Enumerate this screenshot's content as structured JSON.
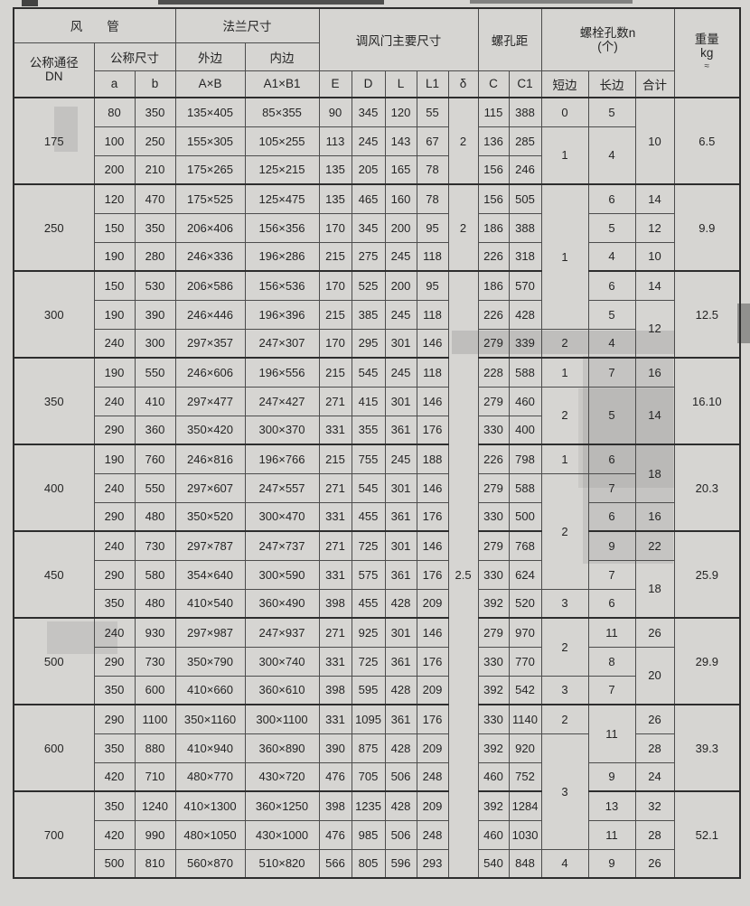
{
  "table": {
    "header": {
      "duct_group": "风　　管",
      "flange_group": "法兰尺寸",
      "damper_group": "调风门主要尺寸",
      "pitch_group": "螺孔距",
      "bolt_group_line1": "螺栓孔数n",
      "bolt_group_line2": "(个)",
      "weight_line1": "重量",
      "weight_line2": "kg",
      "weight_line3": "≈",
      "dn_line1": "公称通径",
      "dn_line2": "DN",
      "nominal_size": "公称尺寸",
      "outer_edge": "外边",
      "inner_edge": "内边",
      "sub": [
        "a",
        "b",
        "A×B",
        "A1×B1",
        "E",
        "D",
        "L",
        "L1",
        "δ",
        "C",
        "C1",
        "短边",
        "长边",
        "合计"
      ]
    },
    "body": [
      [
        {
          "v": "175",
          "rs": 3
        },
        {
          "v": "80"
        },
        {
          "v": "350"
        },
        {
          "v": "135×405"
        },
        {
          "v": "85×355"
        },
        {
          "v": "90"
        },
        {
          "v": "345"
        },
        {
          "v": "120"
        },
        {
          "v": "55"
        },
        {
          "v": "2",
          "rs": 3
        },
        {
          "v": "115"
        },
        {
          "v": "388"
        },
        {
          "v": "0"
        },
        {
          "v": "5"
        },
        {
          "v": "10",
          "rs": 3
        },
        {
          "v": "6.5",
          "rs": 3
        }
      ],
      [
        {
          "v": "100"
        },
        {
          "v": "250"
        },
        {
          "v": "155×305"
        },
        {
          "v": "105×255"
        },
        {
          "v": "113"
        },
        {
          "v": "245"
        },
        {
          "v": "143"
        },
        {
          "v": "67"
        },
        {
          "v": "136"
        },
        {
          "v": "285"
        },
        {
          "v": "1",
          "rs": 2
        },
        {
          "v": "4",
          "rs": 2
        }
      ],
      [
        {
          "v": "200"
        },
        {
          "v": "210"
        },
        {
          "v": "175×265"
        },
        {
          "v": "125×215"
        },
        {
          "v": "135"
        },
        {
          "v": "205"
        },
        {
          "v": "165"
        },
        {
          "v": "78"
        },
        {
          "v": "156"
        },
        {
          "v": "246"
        }
      ],
      [
        {
          "v": "250",
          "rs": 3
        },
        {
          "v": "120"
        },
        {
          "v": "470"
        },
        {
          "v": "175×525"
        },
        {
          "v": "125×475"
        },
        {
          "v": "135"
        },
        {
          "v": "465"
        },
        {
          "v": "160"
        },
        {
          "v": "78"
        },
        {
          "v": "2",
          "rs": 3
        },
        {
          "v": "156"
        },
        {
          "v": "505"
        },
        {
          "v": "1",
          "rs": 5
        },
        {
          "v": "6"
        },
        {
          "v": "14"
        },
        {
          "v": "9.9",
          "rs": 3
        }
      ],
      [
        {
          "v": "150"
        },
        {
          "v": "350"
        },
        {
          "v": "206×406"
        },
        {
          "v": "156×356"
        },
        {
          "v": "170"
        },
        {
          "v": "345"
        },
        {
          "v": "200"
        },
        {
          "v": "95"
        },
        {
          "v": "186"
        },
        {
          "v": "388"
        },
        {
          "v": "5"
        },
        {
          "v": "12"
        }
      ],
      [
        {
          "v": "190"
        },
        {
          "v": "280"
        },
        {
          "v": "246×336"
        },
        {
          "v": "196×286"
        },
        {
          "v": "215"
        },
        {
          "v": "275"
        },
        {
          "v": "245"
        },
        {
          "v": "118"
        },
        {
          "v": "226"
        },
        {
          "v": "318"
        },
        {
          "v": "4"
        },
        {
          "v": "10"
        }
      ],
      [
        {
          "v": "300",
          "rs": 3
        },
        {
          "v": "150"
        },
        {
          "v": "530"
        },
        {
          "v": "206×586"
        },
        {
          "v": "156×536"
        },
        {
          "v": "170"
        },
        {
          "v": "525"
        },
        {
          "v": "200"
        },
        {
          "v": "95"
        },
        {
          "v": "2.5",
          "rs": 21
        },
        {
          "v": "186"
        },
        {
          "v": "570"
        },
        {
          "v": "6"
        },
        {
          "v": "14"
        },
        {
          "v": "12.5",
          "rs": 3
        }
      ],
      [
        {
          "v": "190"
        },
        {
          "v": "390"
        },
        {
          "v": "246×446"
        },
        {
          "v": "196×396"
        },
        {
          "v": "215"
        },
        {
          "v": "385"
        },
        {
          "v": "245"
        },
        {
          "v": "118"
        },
        {
          "v": "226"
        },
        {
          "v": "428"
        },
        {
          "v": "5"
        },
        {
          "v": "12",
          "rs": 2
        }
      ],
      [
        {
          "v": "240"
        },
        {
          "v": "300"
        },
        {
          "v": "297×357"
        },
        {
          "v": "247×307"
        },
        {
          "v": "170"
        },
        {
          "v": "295"
        },
        {
          "v": "301"
        },
        {
          "v": "146"
        },
        {
          "v": "279"
        },
        {
          "v": "339"
        },
        {
          "v": "2"
        },
        {
          "v": "4"
        }
      ],
      [
        {
          "v": "350",
          "rs": 3
        },
        {
          "v": "190"
        },
        {
          "v": "550"
        },
        {
          "v": "246×606"
        },
        {
          "v": "196×556"
        },
        {
          "v": "215"
        },
        {
          "v": "545"
        },
        {
          "v": "245"
        },
        {
          "v": "118"
        },
        {
          "v": "228"
        },
        {
          "v": "588"
        },
        {
          "v": "1"
        },
        {
          "v": "7"
        },
        {
          "v": "16"
        },
        {
          "v": "16.10",
          "rs": 3
        }
      ],
      [
        {
          "v": "240"
        },
        {
          "v": "410"
        },
        {
          "v": "297×477"
        },
        {
          "v": "247×427"
        },
        {
          "v": "271"
        },
        {
          "v": "415"
        },
        {
          "v": "301"
        },
        {
          "v": "146"
        },
        {
          "v": "279"
        },
        {
          "v": "460"
        },
        {
          "v": "2",
          "rs": 2
        },
        {
          "v": "5",
          "rs": 2
        },
        {
          "v": "14",
          "rs": 2
        }
      ],
      [
        {
          "v": "290"
        },
        {
          "v": "360"
        },
        {
          "v": "350×420"
        },
        {
          "v": "300×370"
        },
        {
          "v": "331"
        },
        {
          "v": "355"
        },
        {
          "v": "361"
        },
        {
          "v": "176"
        },
        {
          "v": "330"
        },
        {
          "v": "400"
        }
      ],
      [
        {
          "v": "400",
          "rs": 3
        },
        {
          "v": "190"
        },
        {
          "v": "760"
        },
        {
          "v": "246×816"
        },
        {
          "v": "196×766"
        },
        {
          "v": "215"
        },
        {
          "v": "755"
        },
        {
          "v": "245"
        },
        {
          "v": "188"
        },
        {
          "v": "226"
        },
        {
          "v": "798"
        },
        {
          "v": "1"
        },
        {
          "v": "6"
        },
        {
          "v": "18",
          "rs": 2
        },
        {
          "v": "20.3",
          "rs": 3
        }
      ],
      [
        {
          "v": "240"
        },
        {
          "v": "550"
        },
        {
          "v": "297×607"
        },
        {
          "v": "247×557"
        },
        {
          "v": "271"
        },
        {
          "v": "545"
        },
        {
          "v": "301"
        },
        {
          "v": "146"
        },
        {
          "v": "279"
        },
        {
          "v": "588"
        },
        {
          "v": "2",
          "rs": 4
        },
        {
          "v": "7"
        }
      ],
      [
        {
          "v": "290"
        },
        {
          "v": "480"
        },
        {
          "v": "350×520"
        },
        {
          "v": "300×470"
        },
        {
          "v": "331"
        },
        {
          "v": "455"
        },
        {
          "v": "361"
        },
        {
          "v": "176"
        },
        {
          "v": "330"
        },
        {
          "v": "500"
        },
        {
          "v": "6"
        },
        {
          "v": "16"
        }
      ],
      [
        {
          "v": "450",
          "rs": 3
        },
        {
          "v": "240"
        },
        {
          "v": "730"
        },
        {
          "v": "297×787"
        },
        {
          "v": "247×737"
        },
        {
          "v": "271"
        },
        {
          "v": "725"
        },
        {
          "v": "301"
        },
        {
          "v": "146"
        },
        {
          "v": "279"
        },
        {
          "v": "768"
        },
        {
          "v": "9"
        },
        {
          "v": "22"
        },
        {
          "v": "25.9",
          "rs": 3
        }
      ],
      [
        {
          "v": "290"
        },
        {
          "v": "580"
        },
        {
          "v": "354×640"
        },
        {
          "v": "300×590"
        },
        {
          "v": "331"
        },
        {
          "v": "575"
        },
        {
          "v": "361"
        },
        {
          "v": "176"
        },
        {
          "v": "330"
        },
        {
          "v": "624"
        },
        {
          "v": "7"
        },
        {
          "v": "18",
          "rs": 2
        }
      ],
      [
        {
          "v": "350"
        },
        {
          "v": "480"
        },
        {
          "v": "410×540"
        },
        {
          "v": "360×490"
        },
        {
          "v": "398"
        },
        {
          "v": "455"
        },
        {
          "v": "428"
        },
        {
          "v": "209"
        },
        {
          "v": "392"
        },
        {
          "v": "520"
        },
        {
          "v": "3"
        },
        {
          "v": "6"
        }
      ],
      [
        {
          "v": "500",
          "rs": 3
        },
        {
          "v": "240"
        },
        {
          "v": "930"
        },
        {
          "v": "297×987"
        },
        {
          "v": "247×937"
        },
        {
          "v": "271"
        },
        {
          "v": "925"
        },
        {
          "v": "301"
        },
        {
          "v": "146"
        },
        {
          "v": "279"
        },
        {
          "v": "970"
        },
        {
          "v": "2",
          "rs": 2
        },
        {
          "v": "11"
        },
        {
          "v": "26"
        },
        {
          "v": "29.9",
          "rs": 3
        }
      ],
      [
        {
          "v": "290"
        },
        {
          "v": "730"
        },
        {
          "v": "350×790"
        },
        {
          "v": "300×740"
        },
        {
          "v": "331"
        },
        {
          "v": "725"
        },
        {
          "v": "361"
        },
        {
          "v": "176"
        },
        {
          "v": "330"
        },
        {
          "v": "770"
        },
        {
          "v": "8"
        },
        {
          "v": "20",
          "rs": 2
        }
      ],
      [
        {
          "v": "350"
        },
        {
          "v": "600"
        },
        {
          "v": "410×660"
        },
        {
          "v": "360×610"
        },
        {
          "v": "398"
        },
        {
          "v": "595"
        },
        {
          "v": "428"
        },
        {
          "v": "209"
        },
        {
          "v": "392"
        },
        {
          "v": "542"
        },
        {
          "v": "3"
        },
        {
          "v": "7"
        }
      ],
      [
        {
          "v": "600",
          "rs": 3
        },
        {
          "v": "290"
        },
        {
          "v": "1100"
        },
        {
          "v": "350×1160"
        },
        {
          "v": "300×1100"
        },
        {
          "v": "331"
        },
        {
          "v": "1095"
        },
        {
          "v": "361"
        },
        {
          "v": "176"
        },
        {
          "v": "330"
        },
        {
          "v": "1140"
        },
        {
          "v": "2"
        },
        {
          "v": "11",
          "rs": 2
        },
        {
          "v": "26"
        },
        {
          "v": "39.3",
          "rs": 3
        }
      ],
      [
        {
          "v": "350"
        },
        {
          "v": "880"
        },
        {
          "v": "410×940"
        },
        {
          "v": "360×890"
        },
        {
          "v": "390"
        },
        {
          "v": "875"
        },
        {
          "v": "428"
        },
        {
          "v": "209"
        },
        {
          "v": "392"
        },
        {
          "v": "920"
        },
        {
          "v": "3",
          "rs": 4
        },
        {
          "v": "28"
        }
      ],
      [
        {
          "v": "420"
        },
        {
          "v": "710"
        },
        {
          "v": "480×770"
        },
        {
          "v": "430×720"
        },
        {
          "v": "476"
        },
        {
          "v": "705"
        },
        {
          "v": "506"
        },
        {
          "v": "248"
        },
        {
          "v": "460"
        },
        {
          "v": "752"
        },
        {
          "v": "9"
        },
        {
          "v": "24"
        }
      ],
      [
        {
          "v": "700",
          "rs": 3
        },
        {
          "v": "350"
        },
        {
          "v": "1240"
        },
        {
          "v": "410×1300"
        },
        {
          "v": "360×1250"
        },
        {
          "v": "398"
        },
        {
          "v": "1235"
        },
        {
          "v": "428"
        },
        {
          "v": "209"
        },
        {
          "v": "392"
        },
        {
          "v": "1284"
        },
        {
          "v": "13"
        },
        {
          "v": "32"
        },
        {
          "v": "52.1",
          "rs": 3
        }
      ],
      [
        {
          "v": "420"
        },
        {
          "v": "990"
        },
        {
          "v": "480×1050"
        },
        {
          "v": "430×1000"
        },
        {
          "v": "476"
        },
        {
          "v": "985"
        },
        {
          "v": "506"
        },
        {
          "v": "248"
        },
        {
          "v": "460"
        },
        {
          "v": "1030"
        },
        {
          "v": "11"
        },
        {
          "v": "28"
        }
      ],
      [
        {
          "v": "500"
        },
        {
          "v": "810"
        },
        {
          "v": "560×870"
        },
        {
          "v": "510×820"
        },
        {
          "v": "566"
        },
        {
          "v": "805"
        },
        {
          "v": "596"
        },
        {
          "v": "293"
        },
        {
          "v": "540"
        },
        {
          "v": "848"
        },
        {
          "v": "4"
        },
        {
          "v": "9"
        },
        {
          "v": "26"
        }
      ]
    ]
  }
}
